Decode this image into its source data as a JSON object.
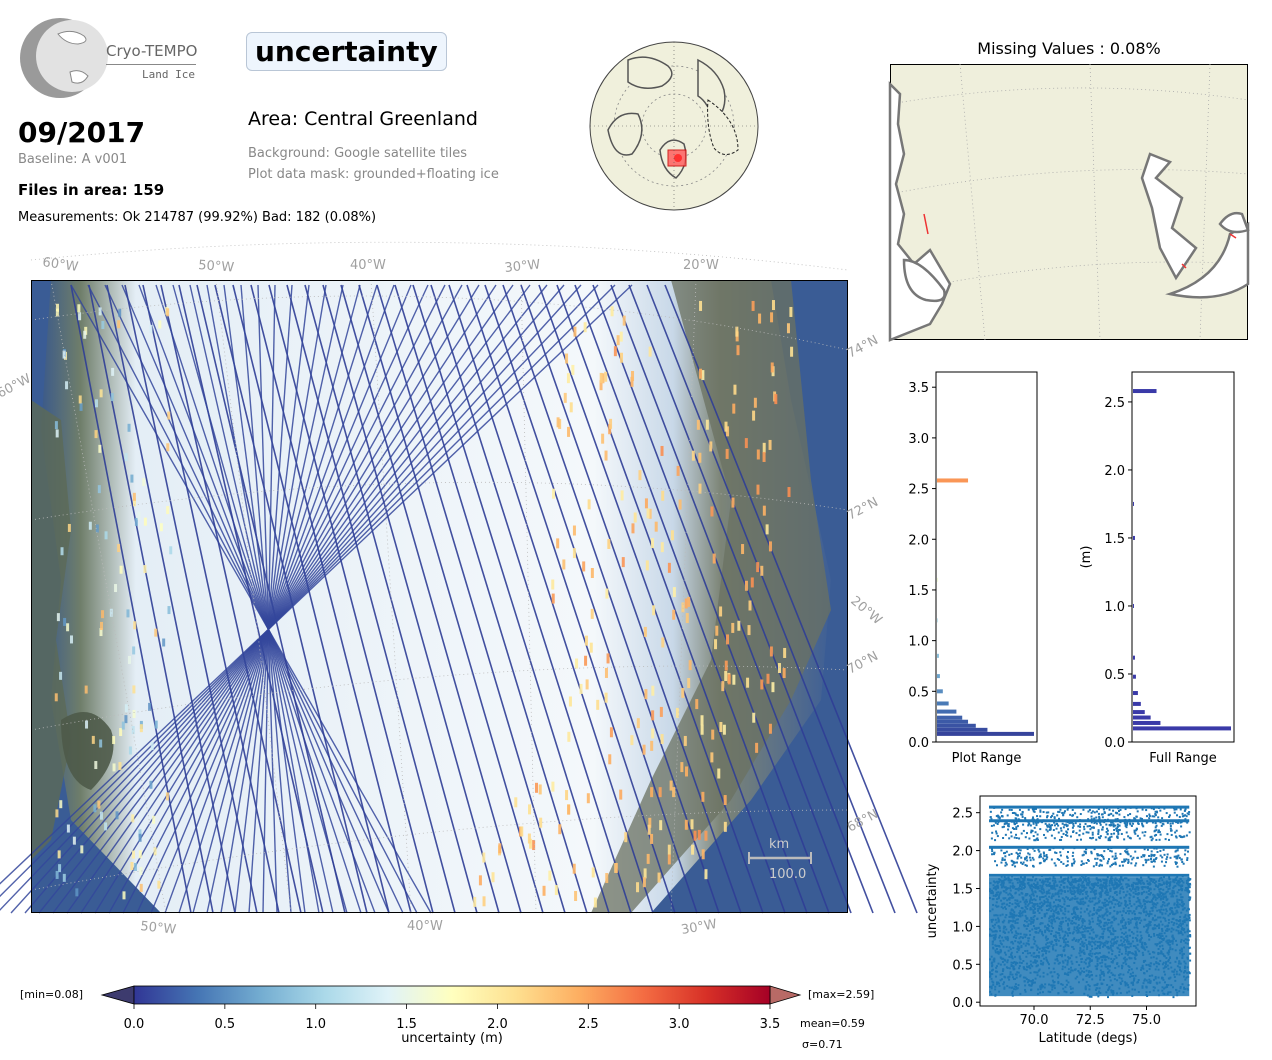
{
  "header": {
    "logo_title": "Cryo-TEMPO",
    "logo_subtitle": "Land Ice",
    "date": "09/2017",
    "baseline": "Baseline: A v001",
    "files": "Files in area: 159",
    "measurements": "Measurements: Ok 214787 (99.92%) Bad: 182 (0.08%)",
    "parameter": "uncertainty",
    "area": "Area: Central Greenland",
    "background": "Background: Google satellite tiles",
    "mask": "Plot data mask: grounded+floating ice"
  },
  "main_map": {
    "top_lon_labels": [
      "60°W",
      "50°W",
      "40°W",
      "30°W",
      "20°W"
    ],
    "bottom_lon_labels": [
      "50°W",
      "40°W",
      "30°W"
    ],
    "right_lat_labels": [
      "74°N",
      "72°N",
      "20°W",
      "70°N",
      "68°N"
    ],
    "left_label": "60°W",
    "scalebar_unit": "km",
    "scalebar_value": "100.0"
  },
  "missing_map": {
    "title": "Missing Values : 0.08%"
  },
  "colorbar": {
    "min_label": "[min=0.08]",
    "max_label": "[max=2.59]",
    "ticks": [
      "0.0",
      "0.5",
      "1.0",
      "1.5",
      "2.0",
      "2.5",
      "3.0",
      "3.5"
    ],
    "label": "uncertainty (m)",
    "mean": "mean=0.59",
    "sigma": "σ=0.71",
    "colors": [
      "#313695",
      "#4575b4",
      "#74add1",
      "#abd9e9",
      "#e0f3f8",
      "#ffffbf",
      "#fee090",
      "#fdae61",
      "#f46d43",
      "#d73027",
      "#a50026"
    ]
  },
  "chart_data": [
    {
      "type": "bar",
      "orientation": "horizontal",
      "xlabel": "Plot Range",
      "ylim": [
        0,
        3.65
      ],
      "yticks": [
        "0.0",
        "0.5",
        "1.0",
        "1.5",
        "2.0",
        "2.5",
        "3.0",
        "3.5"
      ],
      "bins": [
        {
          "y": 0.08,
          "count": 100
        },
        {
          "y": 0.12,
          "count": 52
        },
        {
          "y": 0.16,
          "count": 40
        },
        {
          "y": 0.2,
          "count": 32
        },
        {
          "y": 0.24,
          "count": 26
        },
        {
          "y": 0.3,
          "count": 20
        },
        {
          "y": 0.38,
          "count": 12
        },
        {
          "y": 0.5,
          "count": 6
        },
        {
          "y": 0.65,
          "count": 3
        },
        {
          "y": 0.85,
          "count": 2
        },
        {
          "y": 1.2,
          "count": 1
        },
        {
          "y": 1.6,
          "count": 1
        },
        {
          "y": 2.58,
          "count": 32
        }
      ]
    },
    {
      "type": "bar",
      "orientation": "horizontal",
      "xlabel": "Full Range",
      "ylabel": "(m)",
      "ylim": [
        0,
        2.72
      ],
      "yticks": [
        "0.0",
        "0.5",
        "1.0",
        "1.5",
        "2.0",
        "2.5"
      ],
      "bins": [
        {
          "y": 0.1,
          "count": 100
        },
        {
          "y": 0.14,
          "count": 28
        },
        {
          "y": 0.18,
          "count": 18
        },
        {
          "y": 0.22,
          "count": 12
        },
        {
          "y": 0.28,
          "count": 8
        },
        {
          "y": 0.36,
          "count": 5
        },
        {
          "y": 0.48,
          "count": 3
        },
        {
          "y": 0.62,
          "count": 2
        },
        {
          "y": 1.0,
          "count": 1
        },
        {
          "y": 1.5,
          "count": 2
        },
        {
          "y": 1.75,
          "count": 1
        },
        {
          "y": 2.58,
          "count": 24
        }
      ]
    },
    {
      "type": "scatter",
      "xlabel": "Latitude (degs)",
      "ylabel": "uncertainty",
      "xlim": [
        67.6,
        77.2
      ],
      "ylim": [
        -0.05,
        2.72
      ],
      "xticks": [
        "70.0",
        "72.5",
        "75.0"
      ],
      "yticks": [
        "0.0",
        "0.5",
        "1.0",
        "1.5",
        "2.0",
        "2.5"
      ],
      "x_range": [
        68.0,
        76.9
      ],
      "dense_y_max": 1.65,
      "bands": [
        1.68,
        2.05,
        2.4,
        2.58
      ]
    }
  ]
}
